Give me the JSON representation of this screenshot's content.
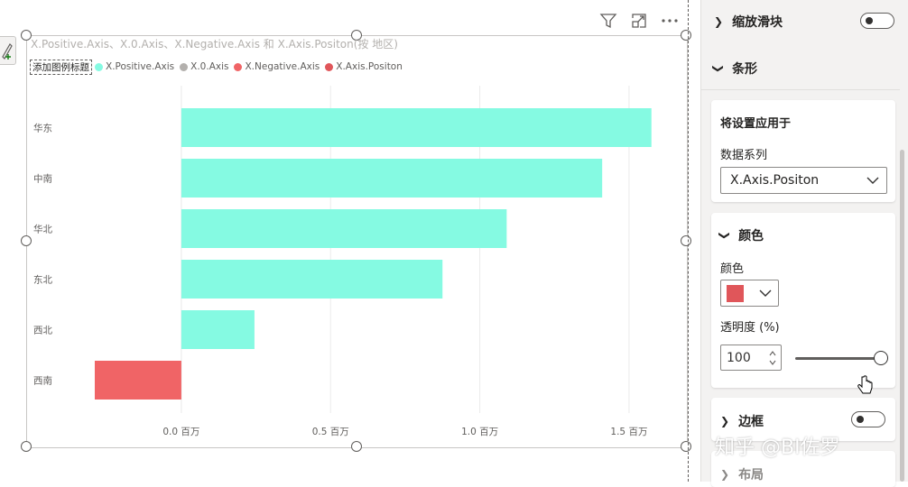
{
  "visual": {
    "title": "X.Positive.Axis、X.0.Axis、X.Negative.Axis 和 X.Axis.Positon(按 地区)",
    "legend": {
      "title": "添加图例标题",
      "items": [
        {
          "label": "X.Positive.Axis",
          "color": "#85fae2"
        },
        {
          "label": "X.0.Axis",
          "color": "#b3b0ad"
        },
        {
          "label": "X.Negative.Axis",
          "color": "#f06466"
        },
        {
          "label": "X.Axis.Positon",
          "color": "#e0565a"
        }
      ]
    },
    "header_icons": [
      "filter-icon",
      "focus-mode-icon",
      "more-options-icon"
    ]
  },
  "chart_data": {
    "type": "bar",
    "orientation": "horizontal",
    "categories": [
      "华东",
      "中南",
      "华北",
      "东北",
      "西北",
      "西南"
    ],
    "series": [
      {
        "name": "X.Positive.Axis",
        "color": "#85fae2",
        "values": [
          1.575,
          1.41,
          1.09,
          0.875,
          0.245,
          0
        ]
      },
      {
        "name": "X.Negative.Axis",
        "color": "#f06466",
        "values": [
          0,
          0,
          0,
          0,
          0,
          -0.29
        ]
      }
    ],
    "xticks": [
      0.0,
      0.5,
      1.0,
      1.5
    ],
    "xtick_labels": [
      "0.0 百万",
      "0.5 百万",
      "1.0 百万",
      "1.5 百万"
    ],
    "xlim": [
      -0.29,
      1.6
    ],
    "grid": true,
    "legend_position": "top-left"
  },
  "pane": {
    "zoom_slider": {
      "label": "缩放滑块",
      "on": false
    },
    "bars_section": {
      "label": "条形"
    },
    "apply_settings": {
      "title": "将设置应用于",
      "series_label": "数据系列",
      "series_value": "X.Axis.Positon"
    },
    "color_section": {
      "label": "颜色",
      "color_label": "颜色",
      "color_value": "#e0565a",
      "transparency_label": "透明度 (%)",
      "transparency_value": "100",
      "transparency_fraction": 1.0
    },
    "border_section": {
      "label": "边框",
      "on": false
    },
    "layout_section": {
      "label": "布局"
    }
  },
  "watermark": "知乎 @BI佐罗"
}
